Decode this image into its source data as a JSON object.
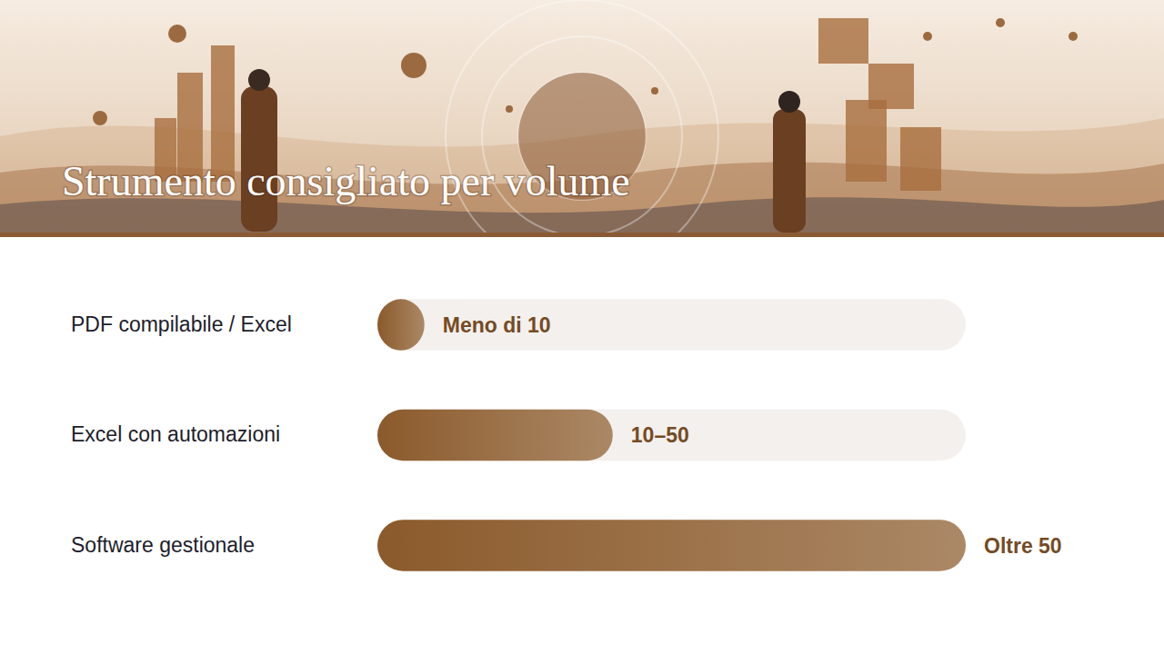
{
  "chart_data": {
    "type": "bar",
    "orientation": "horizontal",
    "title": "Strumento consigliato per volume",
    "categories": [
      "PDF compilabile / Excel",
      "Excel con automazioni",
      "Software gestionale"
    ],
    "values": [
      8,
      40,
      100
    ],
    "value_labels": [
      "Meno di 10",
      "10–50",
      "Oltre 50"
    ],
    "xlim": [
      0,
      100
    ],
    "data_labels": true,
    "tick_labels": "y",
    "color": "#8b5a2b"
  }
}
